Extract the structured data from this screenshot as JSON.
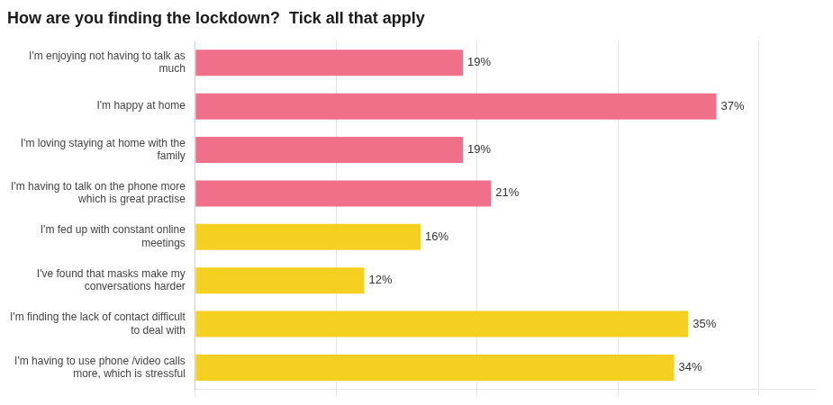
{
  "chart_data": {
    "type": "bar",
    "orientation": "horizontal",
    "title": "How are you finding the lockdown?  Tick all that apply",
    "categories": [
      "I'm enjoying not having to talk as\nmuch",
      "I'm happy at home",
      "I'm loving staying at home with the\nfamily",
      "I'm having to talk on the phone more\nwhich is great practise",
      "I'm fed up with constant online\nmeetings",
      "I've found that masks make my\nconversations harder",
      "I'm finding the lack of contact difficult\nto deal with",
      "I'm having to use phone /video calls\nmore, which is stressful"
    ],
    "values": [
      19,
      37,
      19,
      21,
      16,
      12,
      35,
      34
    ],
    "value_labels": [
      "19%",
      "37%",
      "19%",
      "21%",
      "16%",
      "12%",
      "35%",
      "34%"
    ],
    "colors": [
      "#F0708A",
      "#F0708A",
      "#F0708A",
      "#F0708A",
      "#F5D020",
      "#F5D020",
      "#F5D020",
      "#F5D020"
    ],
    "xlim": [
      0,
      44
    ],
    "xticks": [
      0,
      10,
      20,
      30,
      40
    ],
    "grid": true,
    "data_labels": true,
    "tick_labels": "y"
  }
}
